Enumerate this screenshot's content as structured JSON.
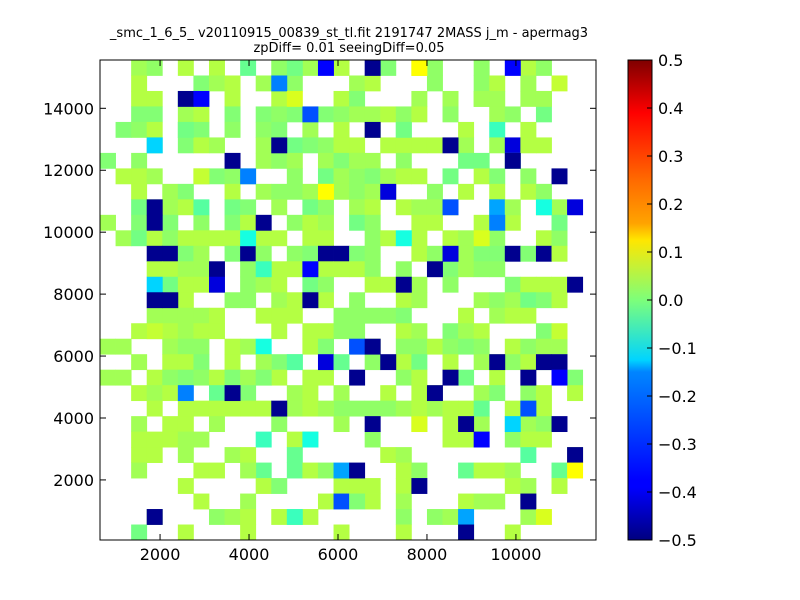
{
  "chart_data": {
    "type": "heatmap",
    "title": "_smc_1_6_5_ v20110915_00839_st_tl.fit 2191747 2MASS j_m - apermag3",
    "subtitle": "zpDiff= 0.01 seeingDiff=0.05",
    "xlabel": "",
    "ylabel": "",
    "xlim": [
      650,
      11800
    ],
    "ylim": [
      60,
      15560
    ],
    "x_ticks": [
      2000,
      4000,
      6000,
      8000,
      10000
    ],
    "y_ticks": [
      2000,
      4000,
      6000,
      8000,
      10000,
      12000,
      14000
    ],
    "x_tick_labels": [
      "2000",
      "4000",
      "6000",
      "8000",
      "10000"
    ],
    "y_tick_labels": [
      "2000",
      "4000",
      "6000",
      "8000",
      "10000",
      "12000",
      "14000"
    ],
    "colorbar": {
      "colormap": "jet",
      "vmin": -0.5,
      "vmax": 0.5,
      "ticks": [
        0.5,
        0.4,
        0.3,
        0.2,
        0.1,
        0.0,
        -0.1,
        -0.2,
        -0.3,
        -0.4,
        -0.5
      ],
      "tick_labels": [
        "0.5",
        "0.4",
        "0.3",
        "0.2",
        "0.1",
        "0.0",
        "−0.1",
        "−0.2",
        "−0.3",
        "−0.4",
        "−0.5"
      ]
    },
    "grid": false,
    "bin_x0": 650,
    "bin_y0": 60,
    "bin_width": 350,
    "bin_height": 500,
    "cols": 31,
    "rows": 31,
    "colors": {
      "a": "#b4ff43",
      "b": "#a2ff55",
      "c": "#90ff66",
      "d": "#83ff74",
      "e": "#73ff83",
      "f": "#66ff90",
      "g": "#56ffa0",
      "h": "#3affbd",
      "i": "#16ffe1",
      "j": "#c4ff33",
      "k": "#d9ff1e",
      "l": "#ffff00",
      "m": "#ffa300",
      "n": "#00d4ff",
      "o": "#00a4ff",
      "p": "#0080ff",
      "q": "#0050ff",
      "r": "#0000ff",
      "s": "#0000dd",
      "t": "#00008f",
      ".": null
    },
    "cells": [
      "..bc.a.a.f.c.b.a..d.bc..c..ac.",
      "..a...dba.b.c...ba...c..ca.b..",
      "..aa.dd.a..a...ad...b.b.c..bb.",
      "..dd.ba.d.dcdbdcbbaca.c..bc.e.",
      ".dca.cd.c.cd.b.a.a.e...a.h.a..",
      "...d.dab..bdedcaa.aaaa.b.bsaa.",
      "d.c.......bcb.bdbb.c...ee.e...",
      ".aab..cdca..c.ebcdbaa.e.ad.c..",
      "..a.bd..a.bccbbbcba..c.a.a.ac.",
      "..ebba..ed.b.ec.ba.abba..b..ab",
      "..dad.c.da..cab.ec..aa..aaa...",
      ".beacaaaaaaa.aa..ca.a.ab.c..ac",
      "...ttdb.dtc.cdttdc..acabddtdta",
      "...aabb..cbaadaaac.c..dbcc.....",
      "....eaaa.cba.ec..aafb.c...daaa.",
      "....aa..cc.baca.c..ab...bcbeda.",
      "...bbbba..aaa..ccccd...a.baa...",
      "..acabaa...a.aacc..ab.dba...d..",
      "bb..bcc.ab...aa.ca.ccacdc.acbb.",
      "..b.aad.a..dd....c.ae.a.bbcacc.",
      "bb.acdcadbba.aa....ca..e.a....d",
      "..aba..fcd..ba.b..a.aa..bd.ca.a",
      "...a.aaaaaa.ba.ccccbabaa..aea..",
      "..b.aa.b...c...b....c.a.b.bbc..",
      "..aaabb.....ab...c....aa..caa..",
      "..aa.b..ba..f.....ab..........a",
      "..b...aa..f.fac....ac..faab..f.",
      ".....a....a....aaa.a......ab.a.",
      "......a..b....a..a.b...abb.b...",
      "...b...cba.aaa.....c.cb....b...",
      "..e..a...a.....a...a...c..a...."
    ],
    "overlay": [
      "............e.r..t..l.....r....",
      "...........p.................j.",
      ".....tr.....k...........bb..b..",
      ".............q..................",
      ".....e...........t.e...........",
      "...n.......t..........t........",
      "........t.......b.........t....",
      "......j..p...................t.",
      "..............l...s............",
      "...t..g...............q..ob.i.s",
      "b..t......t..............p...e.",
      ".........i.........i....k......",
      "......................s........",
      ".......t..h..r.......t.........",
      "...n...s...........t..........t",
      "...tt........t.................",
      "...............................",
      "...j.........................j.",
      "..........i...d.qt.............",
      "..........b.g.sf..t......t..tt.",
      "..........d.....t.....t....t.r.",
      ".....p..t............t.........",
      "...........t..b.........f..q...",
      ".................t..k..t..n..t.",
      "..........h..i..........r......",
      "...........................g..t",
      ".........b.....ot.............l",
      "...........d........t..........",
      "...............qd..........t...",
      "...t........h..........o....k..",
      ".......................t......."
    ]
  }
}
